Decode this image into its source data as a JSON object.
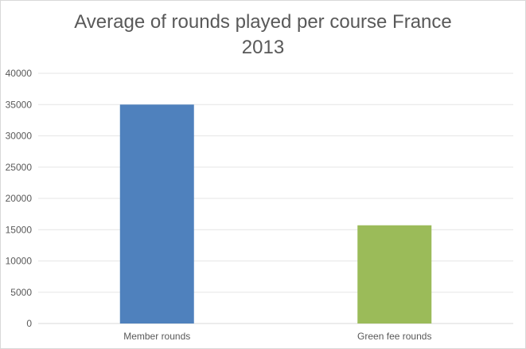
{
  "chart_data": {
    "type": "bar",
    "title_lines": [
      "Average of rounds played per course France",
      "2013"
    ],
    "categories": [
      "Member rounds",
      "Green fee rounds"
    ],
    "values": [
      35000,
      15700
    ],
    "colors": [
      "#4f81bd",
      "#9bbb59"
    ],
    "ylim": [
      0,
      40000
    ],
    "yticks": [
      0,
      5000,
      10000,
      15000,
      20000,
      25000,
      30000,
      35000,
      40000
    ],
    "xlabel": "",
    "ylabel": "",
    "grid": true,
    "legend": "none"
  }
}
